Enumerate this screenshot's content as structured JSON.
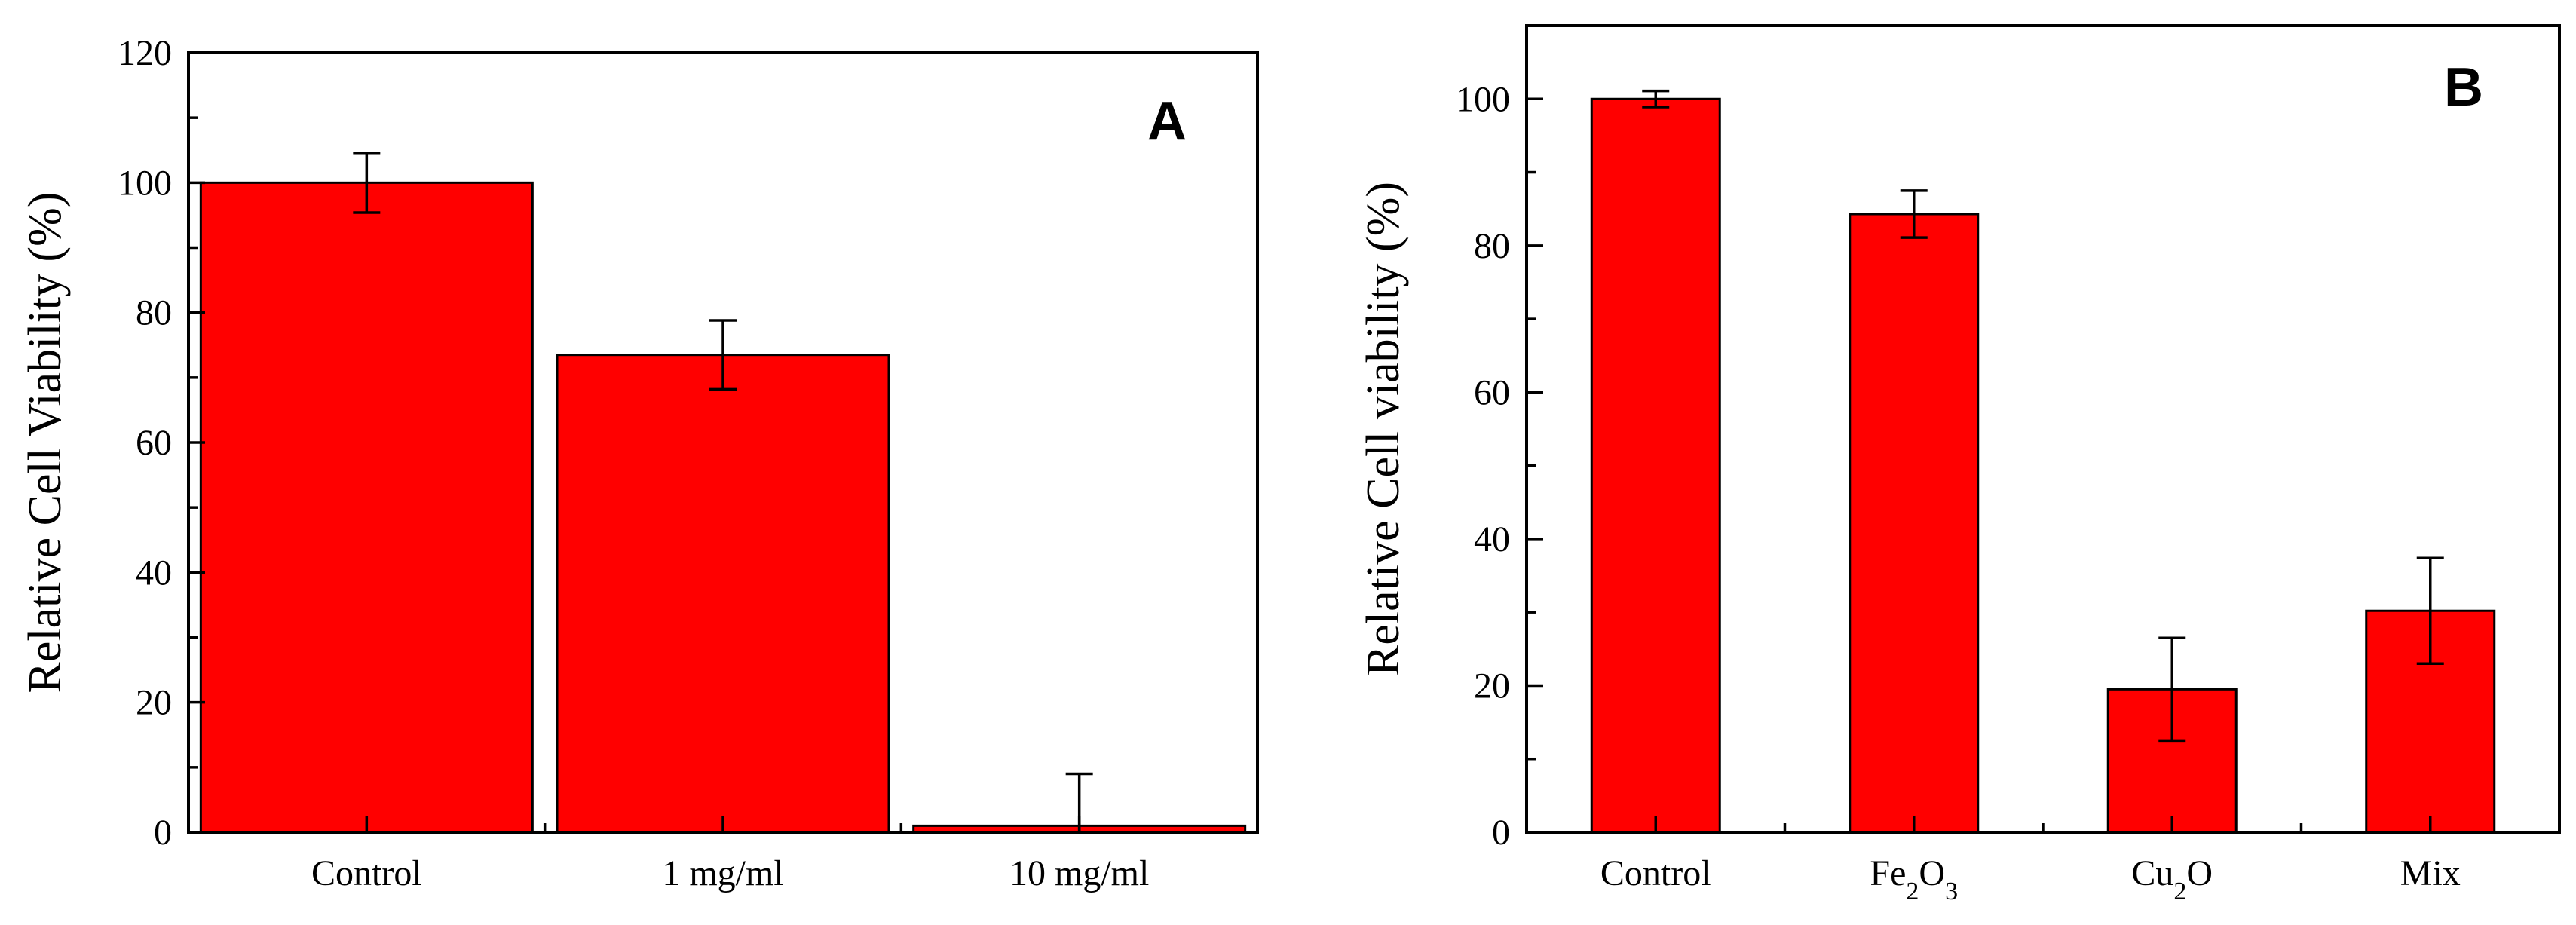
{
  "chart_data": [
    {
      "type": "bar",
      "panel_label": "A",
      "categories": [
        {
          "parts": [
            {
              "t": "Control"
            }
          ]
        },
        {
          "parts": [
            {
              "t": "1 mg/ml"
            }
          ]
        },
        {
          "parts": [
            {
              "t": "10 mg/ml"
            }
          ]
        }
      ],
      "values": [
        100,
        73.5,
        1
      ],
      "errors": [
        4.6,
        5.3,
        8
      ],
      "ylabel": "Relative Cell Viability (%)",
      "xlabel": "",
      "ylim": [
        0,
        120
      ],
      "yticks": [
        0,
        20,
        40,
        60,
        80,
        100,
        120
      ],
      "grid": false,
      "bar_color": "#FF0000"
    },
    {
      "type": "bar",
      "panel_label": "B",
      "categories": [
        {
          "parts": [
            {
              "t": "Control"
            }
          ]
        },
        {
          "parts": [
            {
              "t": "Fe"
            },
            {
              "t": "2",
              "sub": true
            },
            {
              "t": "O"
            },
            {
              "t": "3",
              "sub": true
            }
          ]
        },
        {
          "parts": [
            {
              "t": "Cu"
            },
            {
              "t": "2",
              "sub": true
            },
            {
              "t": "O"
            }
          ]
        },
        {
          "parts": [
            {
              "t": "Mix"
            }
          ]
        }
      ],
      "values": [
        100,
        84.3,
        19.5,
        30.2
      ],
      "errors": [
        1.1,
        3.2,
        7,
        7.2
      ],
      "ylabel": "Relative Cell viability (%)",
      "xlabel": "",
      "ylim": [
        0,
        110
      ],
      "yticks": [
        0,
        20,
        40,
        60,
        80,
        100
      ],
      "grid": false,
      "bar_color": "#FF0000"
    }
  ]
}
